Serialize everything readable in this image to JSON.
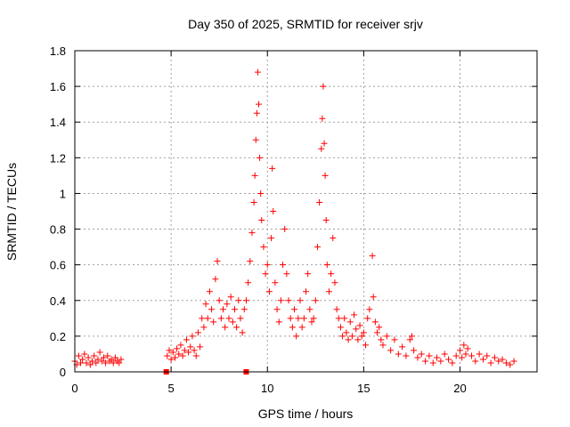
{
  "chart_data": {
    "type": "scatter",
    "title": "Day 350 of 2025, SRMTID for receiver srjv",
    "xlabel": "GPS time / hours",
    "ylabel": "SRMTID / TECUs",
    "xlim": [
      0,
      24
    ],
    "ylim": [
      0,
      1.8
    ],
    "x_ticks": [
      0,
      5,
      10,
      15,
      20
    ],
    "x_tick_labels": [
      "0",
      "5",
      "10",
      "15",
      "20"
    ],
    "y_ticks": [
      0,
      0.2,
      0.4,
      0.6,
      0.8,
      1,
      1.2,
      1.4,
      1.6,
      1.8
    ],
    "y_tick_labels": [
      "0",
      "0.2",
      "0.4",
      "0.6",
      "0.8",
      "1",
      "1.2",
      "1.4",
      "1.6",
      "1.8"
    ],
    "grid": true,
    "marker": "plus",
    "series": [
      {
        "name": "SRMTID",
        "color": "#ff0000",
        "points": [
          [
            0.0,
            0.06
          ],
          [
            0.1,
            0.04
          ],
          [
            0.2,
            0.09
          ],
          [
            0.3,
            0.05
          ],
          [
            0.4,
            0.07
          ],
          [
            0.5,
            0.1
          ],
          [
            0.6,
            0.05
          ],
          [
            0.7,
            0.08
          ],
          [
            0.8,
            0.04
          ],
          [
            0.9,
            0.06
          ],
          [
            1.0,
            0.09
          ],
          [
            1.1,
            0.05
          ],
          [
            1.2,
            0.07
          ],
          [
            1.3,
            0.11
          ],
          [
            1.4,
            0.06
          ],
          [
            1.5,
            0.08
          ],
          [
            1.6,
            0.05
          ],
          [
            1.7,
            0.09
          ],
          [
            1.8,
            0.06
          ],
          [
            1.9,
            0.07
          ],
          [
            2.0,
            0.05
          ],
          [
            2.1,
            0.08
          ],
          [
            2.2,
            0.06
          ],
          [
            2.3,
            0.05
          ],
          [
            2.4,
            0.07
          ],
          [
            4.8,
            0.09
          ],
          [
            4.9,
            0.12
          ],
          [
            5.0,
            0.07
          ],
          [
            5.1,
            0.11
          ],
          [
            5.2,
            0.08
          ],
          [
            5.3,
            0.13
          ],
          [
            5.4,
            0.1
          ],
          [
            5.5,
            0.15
          ],
          [
            5.6,
            0.09
          ],
          [
            5.7,
            0.12
          ],
          [
            5.8,
            0.18
          ],
          [
            5.9,
            0.11
          ],
          [
            6.0,
            0.14
          ],
          [
            6.1,
            0.2
          ],
          [
            6.2,
            0.12
          ],
          [
            6.3,
            0.09
          ],
          [
            6.4,
            0.22
          ],
          [
            6.5,
            0.14
          ],
          [
            6.6,
            0.3
          ],
          [
            6.7,
            0.25
          ],
          [
            6.8,
            0.38
          ],
          [
            6.9,
            0.3
          ],
          [
            7.0,
            0.45
          ],
          [
            7.1,
            0.35
          ],
          [
            7.2,
            0.28
          ],
          [
            7.3,
            0.52
          ],
          [
            7.4,
            0.62
          ],
          [
            7.5,
            0.4
          ],
          [
            7.6,
            0.3
          ],
          [
            7.7,
            0.35
          ],
          [
            7.8,
            0.25
          ],
          [
            7.9,
            0.38
          ],
          [
            8.0,
            0.3
          ],
          [
            8.1,
            0.42
          ],
          [
            8.2,
            0.28
          ],
          [
            8.3,
            0.35
          ],
          [
            8.4,
            0.25
          ],
          [
            8.5,
            0.4
          ],
          [
            8.6,
            0.3
          ],
          [
            8.7,
            0.22
          ],
          [
            8.8,
            0.35
          ],
          [
            8.9,
            0.4
          ],
          [
            9.0,
            0.5
          ],
          [
            9.1,
            0.62
          ],
          [
            9.2,
            0.78
          ],
          [
            9.3,
            0.95
          ],
          [
            9.35,
            1.1
          ],
          [
            9.4,
            1.3
          ],
          [
            9.45,
            1.45
          ],
          [
            9.5,
            1.68
          ],
          [
            9.55,
            1.5
          ],
          [
            9.6,
            1.2
          ],
          [
            9.65,
            1.0
          ],
          [
            9.7,
            0.85
          ],
          [
            9.8,
            0.7
          ],
          [
            9.9,
            0.55
          ],
          [
            10.0,
            0.6
          ],
          [
            10.1,
            0.45
          ],
          [
            10.2,
            0.75
          ],
          [
            10.25,
            1.14
          ],
          [
            10.3,
            0.9
          ],
          [
            10.4,
            0.5
          ],
          [
            10.5,
            0.35
          ],
          [
            10.6,
            0.28
          ],
          [
            10.7,
            0.4
          ],
          [
            10.8,
            0.6
          ],
          [
            10.9,
            0.8
          ],
          [
            11.0,
            0.55
          ],
          [
            11.1,
            0.4
          ],
          [
            11.2,
            0.3
          ],
          [
            11.3,
            0.25
          ],
          [
            11.4,
            0.35
          ],
          [
            11.5,
            0.2
          ],
          [
            11.6,
            0.3
          ],
          [
            11.7,
            0.4
          ],
          [
            11.8,
            0.25
          ],
          [
            11.9,
            0.3
          ],
          [
            12.0,
            0.45
          ],
          [
            12.1,
            0.55
          ],
          [
            12.2,
            0.35
          ],
          [
            12.3,
            0.28
          ],
          [
            12.4,
            0.3
          ],
          [
            12.5,
            0.4
          ],
          [
            12.6,
            0.7
          ],
          [
            12.7,
            0.95
          ],
          [
            12.8,
            1.25
          ],
          [
            12.85,
            1.42
          ],
          [
            12.9,
            1.6
          ],
          [
            12.95,
            1.28
          ],
          [
            13.0,
            1.1
          ],
          [
            13.05,
            0.85
          ],
          [
            13.1,
            0.6
          ],
          [
            13.2,
            0.45
          ],
          [
            13.3,
            0.55
          ],
          [
            13.4,
            0.75
          ],
          [
            13.5,
            0.5
          ],
          [
            13.6,
            0.35
          ],
          [
            13.7,
            0.3
          ],
          [
            13.8,
            0.25
          ],
          [
            13.9,
            0.2
          ],
          [
            14.0,
            0.3
          ],
          [
            14.1,
            0.22
          ],
          [
            14.2,
            0.18
          ],
          [
            14.3,
            0.28
          ],
          [
            14.4,
            0.2
          ],
          [
            14.5,
            0.32
          ],
          [
            14.6,
            0.24
          ],
          [
            14.7,
            0.18
          ],
          [
            14.8,
            0.26
          ],
          [
            14.9,
            0.2
          ],
          [
            15.0,
            0.22
          ],
          [
            15.1,
            0.15
          ],
          [
            15.2,
            0.3
          ],
          [
            15.3,
            0.35
          ],
          [
            15.45,
            0.65
          ],
          [
            15.5,
            0.42
          ],
          [
            15.6,
            0.28
          ],
          [
            15.7,
            0.22
          ],
          [
            15.8,
            0.25
          ],
          [
            15.9,
            0.18
          ],
          [
            16.0,
            0.15
          ],
          [
            16.2,
            0.2
          ],
          [
            16.4,
            0.12
          ],
          [
            16.6,
            0.18
          ],
          [
            16.8,
            0.1
          ],
          [
            17.0,
            0.14
          ],
          [
            17.2,
            0.09
          ],
          [
            17.4,
            0.18
          ],
          [
            17.5,
            0.2
          ],
          [
            17.6,
            0.12
          ],
          [
            17.8,
            0.08
          ],
          [
            18.0,
            0.1
          ],
          [
            18.2,
            0.06
          ],
          [
            18.4,
            0.09
          ],
          [
            18.6,
            0.05
          ],
          [
            18.8,
            0.08
          ],
          [
            19.0,
            0.06
          ],
          [
            19.2,
            0.1
          ],
          [
            19.4,
            0.07
          ],
          [
            19.6,
            0.05
          ],
          [
            19.8,
            0.09
          ],
          [
            20.0,
            0.12
          ],
          [
            20.1,
            0.08
          ],
          [
            20.2,
            0.15
          ],
          [
            20.3,
            0.1
          ],
          [
            20.4,
            0.13
          ],
          [
            20.6,
            0.09
          ],
          [
            20.8,
            0.06
          ],
          [
            21.0,
            0.1
          ],
          [
            21.2,
            0.07
          ],
          [
            21.4,
            0.09
          ],
          [
            21.6,
            0.05
          ],
          [
            21.8,
            0.08
          ],
          [
            22.0,
            0.06
          ],
          [
            22.2,
            0.07
          ],
          [
            22.4,
            0.05
          ],
          [
            22.6,
            0.04
          ],
          [
            22.8,
            0.06
          ]
        ]
      },
      {
        "name": "markers",
        "color": "#ff0000",
        "marker": "square",
        "points": [
          [
            4.75,
            0.0
          ],
          [
            8.9,
            0.0
          ]
        ]
      }
    ]
  }
}
